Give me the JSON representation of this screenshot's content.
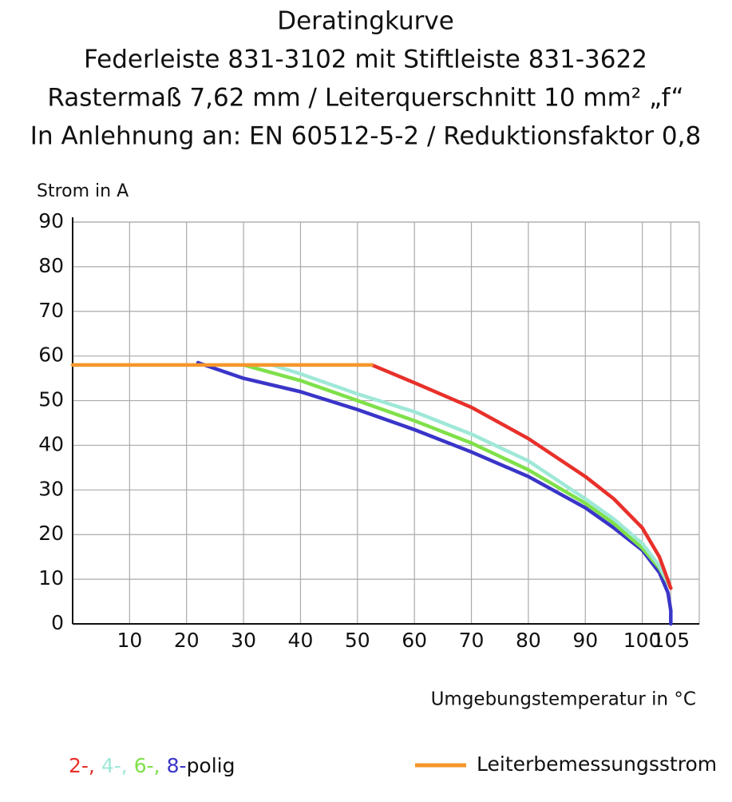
{
  "chart_data": {
    "type": "line",
    "title": [
      "Deratingkurve",
      "Federleiste 831-3102 mit Stiftleiste 831-3622",
      "Rastermaß 7,62 mm / Leiterquerschnitt 10 mm² „f“",
      "In Anlehnung an: EN 60512-5-2 / Reduktionsfaktor 0,8"
    ],
    "ylabel": "Strom in A",
    "xlabel": "Umgebungstemperatur in °C",
    "xlim": [
      0,
      110
    ],
    "xticks": [
      10,
      20,
      30,
      40,
      50,
      60,
      70,
      80,
      90,
      100,
      105
    ],
    "ylim": [
      0,
      90
    ],
    "yticks": [
      0,
      10,
      20,
      30,
      40,
      50,
      60,
      70,
      80,
      90
    ],
    "grid": true,
    "legend_suffix": "polig",
    "series": [
      {
        "name": "2-,",
        "color": "#e8302a",
        "x": [
          52.5,
          60,
          70,
          80,
          90,
          95,
          100,
          103,
          105
        ],
        "values": [
          58,
          54,
          48.5,
          41.5,
          33,
          28,
          21.5,
          15,
          8
        ]
      },
      {
        "name": "4-,",
        "color": "#9fe8d8",
        "x": [
          35,
          40,
          50,
          60,
          70,
          80,
          90,
          95,
          100,
          103,
          105
        ],
        "values": [
          58,
          56,
          51.5,
          47.5,
          42.5,
          36.5,
          28,
          23.5,
          18,
          13,
          8
        ]
      },
      {
        "name": "6-,",
        "color": "#7fe04a",
        "x": [
          30,
          40,
          50,
          60,
          70,
          80,
          90,
          95,
          100,
          103,
          105
        ],
        "values": [
          58,
          54.5,
          50,
          45.5,
          40.5,
          34.5,
          27,
          22.5,
          17,
          12.5,
          8
        ]
      },
      {
        "name": "8-",
        "color": "#3a35c8",
        "x": [
          22,
          30,
          40,
          50,
          60,
          70,
          80,
          90,
          95,
          100,
          103,
          104.5,
          105,
          105
        ],
        "values": [
          58.5,
          55,
          52,
          48,
          43.5,
          38.5,
          33,
          26,
          21.5,
          16.5,
          11.5,
          7,
          3,
          0
        ]
      },
      {
        "name": "Leiterbemessungsstrom",
        "color": "#f5962a",
        "x": [
          0,
          52.5
        ],
        "values": [
          58,
          58
        ]
      }
    ]
  }
}
